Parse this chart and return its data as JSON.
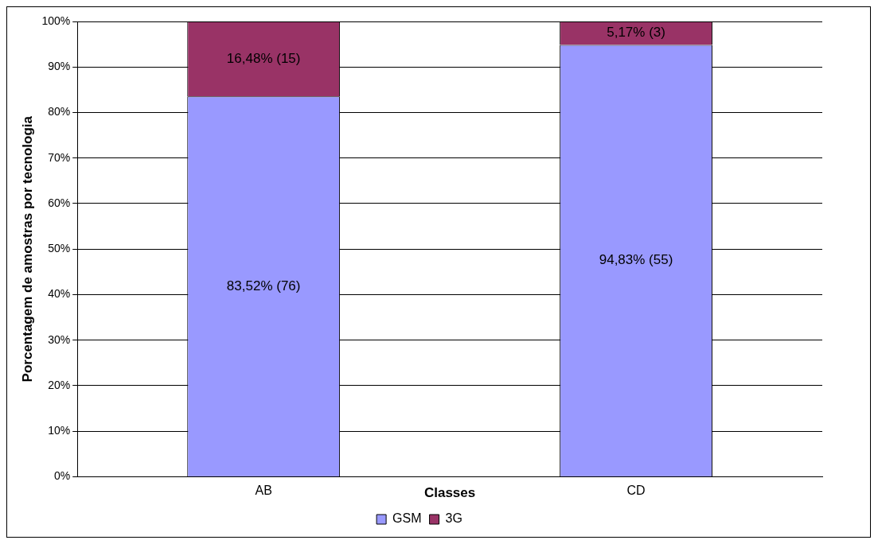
{
  "chart_data": {
    "type": "bar",
    "stacked": true,
    "xlabel": "Classes",
    "ylabel": "Porcentagem de amostras por tecnologia",
    "categories": [
      "AB",
      "CD"
    ],
    "series": [
      {
        "name": "GSM",
        "color": "#9999ff",
        "values": [
          83.52,
          94.83
        ],
        "value_labels": [
          "83,52% (76)",
          "94,83% (55)"
        ]
      },
      {
        "name": "3G",
        "color": "#993366",
        "values": [
          16.48,
          5.17
        ],
        "value_labels": [
          "16,48% (15)",
          "5,17% (3)"
        ]
      }
    ],
    "ylim": [
      0,
      100
    ],
    "yticks": [
      {
        "value": 0,
        "label": "0%"
      },
      {
        "value": 10,
        "label": "10%"
      },
      {
        "value": 20,
        "label": "20%"
      },
      {
        "value": 30,
        "label": "30%"
      },
      {
        "value": 40,
        "label": "40%"
      },
      {
        "value": 50,
        "label": "50%"
      },
      {
        "value": 60,
        "label": "60%"
      },
      {
        "value": 70,
        "label": "70%"
      },
      {
        "value": 80,
        "label": "80%"
      },
      {
        "value": 90,
        "label": "90%"
      },
      {
        "value": 100,
        "label": "100%"
      }
    ],
    "grid": "y",
    "legend": "bottom"
  }
}
